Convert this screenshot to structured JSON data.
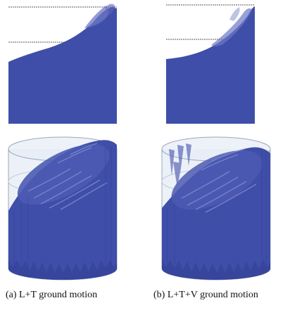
{
  "figure": {
    "panels": [
      {
        "id": "a",
        "caption": "(a) L+T ground motion"
      },
      {
        "id": "b",
        "caption": "(b) L+T+V ground motion"
      }
    ],
    "colors": {
      "fluid": "#3f4ea8",
      "fluid_dark": "#36449a",
      "fluid_light": "#6d78c4",
      "tank_fill": "#dde6f1",
      "tank_stroke": "#9aa7b8",
      "reference_line": "#555555"
    }
  }
}
